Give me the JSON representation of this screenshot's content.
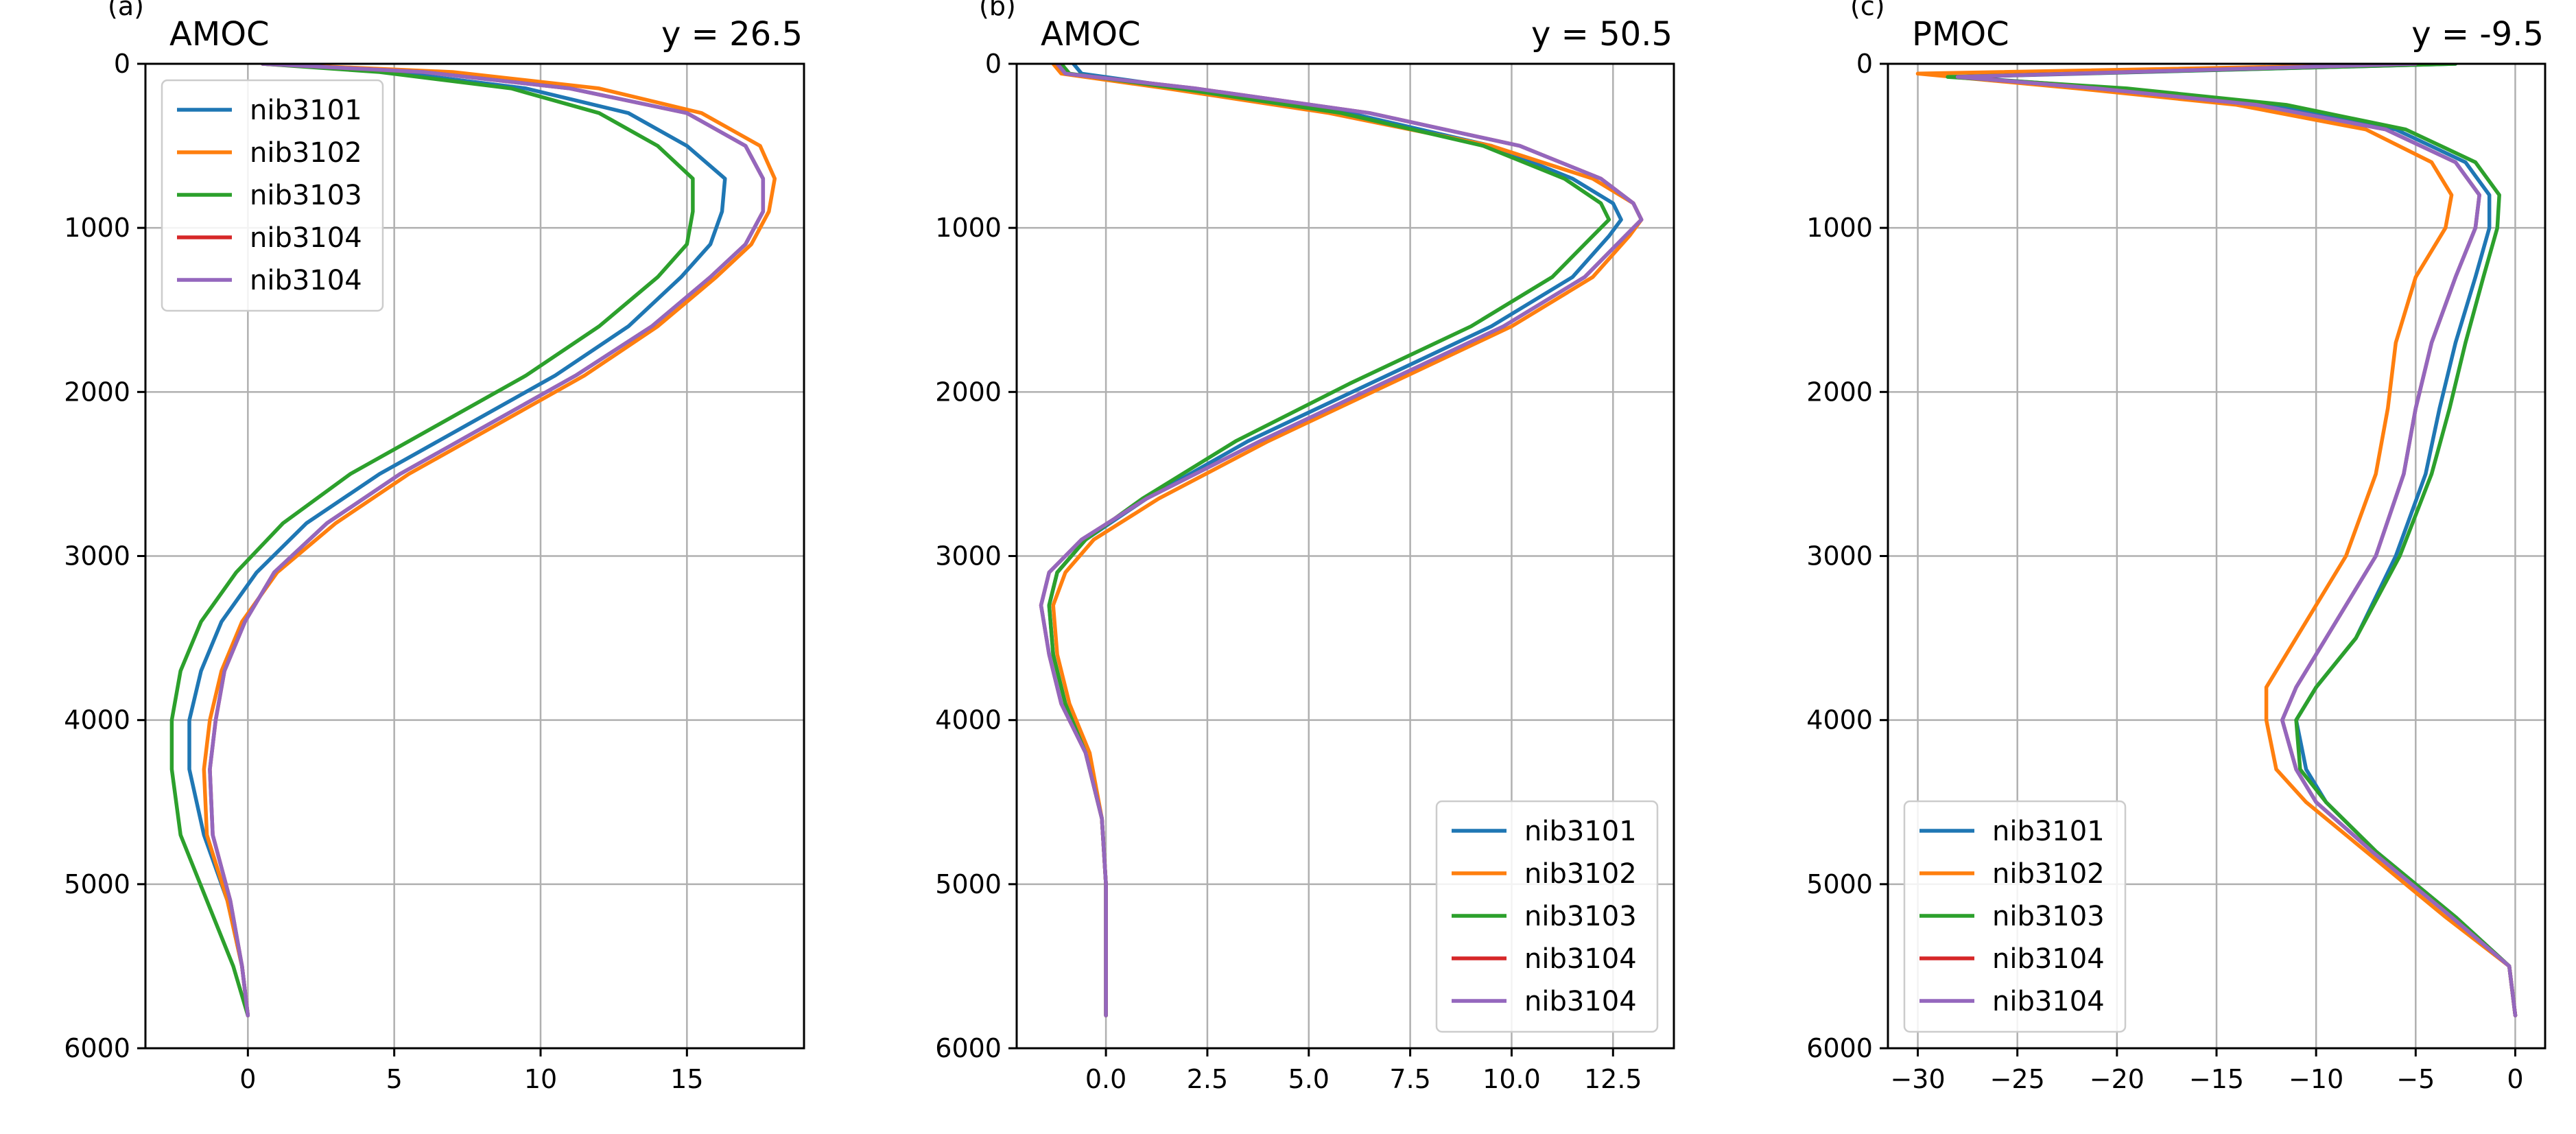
{
  "series_colors": {
    "nib3101": "#1f77b4",
    "nib3102": "#ff7f0e",
    "nib3103": "#2ca02c",
    "nib3104a": "#d62728",
    "nib3104b": "#9467bd"
  },
  "chart_data": [
    {
      "type": "line",
      "panel_tag": "(a)",
      "title_left": "AMOC",
      "title_right": "y = 26.5",
      "xlim": [
        -3.5,
        19
      ],
      "ylim": [
        6000,
        0
      ],
      "y_inverted": true,
      "xticks": [
        0,
        5,
        10,
        15
      ],
      "xtick_labels": [
        "0",
        "5",
        "10",
        "15"
      ],
      "yticks": [
        0,
        1000,
        2000,
        3000,
        4000,
        5000,
        6000
      ],
      "ytick_labels": [
        "0",
        "1000",
        "2000",
        "3000",
        "4000",
        "5000",
        "6000"
      ],
      "grid": true,
      "legend_position": "top-left",
      "series": [
        {
          "name": "nib3101",
          "color": "#1f77b4",
          "x": [
            0.5,
            5,
            9.5,
            13,
            15,
            16.3,
            16.2,
            15.8,
            14.8,
            13,
            10.5,
            7.5,
            4.5,
            2,
            0.3,
            -0.9,
            -1.6,
            -2,
            -2,
            -1.5,
            -0.7,
            -0.2,
            0
          ],
          "y": [
            0,
            50,
            150,
            300,
            500,
            700,
            900,
            1100,
            1300,
            1600,
            1900,
            2200,
            2500,
            2800,
            3100,
            3400,
            3700,
            4000,
            4300,
            4700,
            5100,
            5500,
            5800
          ]
        },
        {
          "name": "nib3102",
          "color": "#ff7f0e",
          "x": [
            0.5,
            7,
            12,
            15.5,
            17.5,
            18,
            17.8,
            17.2,
            16,
            14,
            11.5,
            8.5,
            5.5,
            3,
            1,
            -0.2,
            -0.9,
            -1.3,
            -1.5,
            -1.4,
            -0.7,
            -0.2,
            0
          ],
          "y": [
            0,
            50,
            150,
            300,
            500,
            700,
            900,
            1100,
            1300,
            1600,
            1900,
            2200,
            2500,
            2800,
            3100,
            3400,
            3700,
            4000,
            4300,
            4700,
            5100,
            5500,
            5800
          ]
        },
        {
          "name": "nib3103",
          "color": "#2ca02c",
          "x": [
            0.5,
            4.5,
            9,
            12,
            14,
            15.2,
            15.2,
            15,
            14,
            12,
            9.5,
            6.5,
            3.5,
            1.2,
            -0.4,
            -1.6,
            -2.3,
            -2.6,
            -2.6,
            -2.3,
            -1.4,
            -0.5,
            0
          ],
          "y": [
            0,
            50,
            150,
            300,
            500,
            700,
            900,
            1100,
            1300,
            1600,
            1900,
            2200,
            2500,
            2800,
            3100,
            3400,
            3700,
            4000,
            4300,
            4700,
            5100,
            5500,
            5800
          ]
        },
        {
          "name": "nib3104",
          "color": "#d62728",
          "x": [
            0.5,
            6,
            11,
            15,
            17,
            17.6,
            17.6,
            17,
            15.8,
            13.8,
            11.2,
            8.2,
            5.2,
            2.7,
            0.9,
            -0.1,
            -0.8,
            -1.1,
            -1.3,
            -1.2,
            -0.6,
            -0.2,
            0
          ],
          "y": [
            0,
            50,
            150,
            300,
            500,
            700,
            900,
            1100,
            1300,
            1600,
            1900,
            2200,
            2500,
            2800,
            3100,
            3400,
            3700,
            4000,
            4300,
            4700,
            5100,
            5500,
            5800
          ]
        },
        {
          "name": "nib3104",
          "color": "#9467bd",
          "x": [
            0.5,
            6,
            11,
            15,
            17,
            17.6,
            17.6,
            17,
            15.8,
            13.8,
            11.2,
            8.2,
            5.2,
            2.7,
            0.9,
            -0.1,
            -0.8,
            -1.1,
            -1.3,
            -1.2,
            -0.6,
            -0.2,
            0
          ],
          "y": [
            0,
            50,
            150,
            300,
            500,
            700,
            900,
            1100,
            1300,
            1600,
            1900,
            2200,
            2500,
            2800,
            3100,
            3400,
            3700,
            4000,
            4300,
            4700,
            5100,
            5500,
            5800
          ]
        }
      ]
    },
    {
      "type": "line",
      "panel_tag": "(b)",
      "title_left": "AMOC",
      "title_right": "y = 50.5",
      "xlim": [
        -2.2,
        14
      ],
      "ylim": [
        6000,
        0
      ],
      "y_inverted": true,
      "xticks": [
        0,
        2.5,
        5,
        7.5,
        10,
        12.5
      ],
      "xtick_labels": [
        "0.0",
        "2.5",
        "5.0",
        "7.5",
        "10.0",
        "12.5"
      ],
      "yticks": [
        0,
        1000,
        2000,
        3000,
        4000,
        5000,
        6000
      ],
      "ytick_labels": [
        "0",
        "1000",
        "2000",
        "3000",
        "4000",
        "5000",
        "6000"
      ],
      "grid": true,
      "legend_position": "bottom-right",
      "series": [
        {
          "name": "nib3101",
          "color": "#1f77b4",
          "x": [
            -0.8,
            -0.6,
            2,
            6,
            9.5,
            11.5,
            12.5,
            12.7,
            12.4,
            11.5,
            9.5,
            6.5,
            3.5,
            1,
            -0.5,
            -1.2,
            -1.4,
            -1.3,
            -1,
            -0.5,
            -0.1,
            0,
            0,
            0
          ],
          "y": [
            0,
            60,
            150,
            300,
            500,
            700,
            850,
            950,
            1050,
            1300,
            1600,
            1950,
            2300,
            2650,
            2900,
            3100,
            3300,
            3600,
            3900,
            4200,
            4600,
            5000,
            5500,
            5800
          ]
        },
        {
          "name": "nib3102",
          "color": "#ff7f0e",
          "x": [
            -1.3,
            -1.1,
            1.5,
            5.5,
            9.5,
            12,
            13,
            13.2,
            12.9,
            12,
            10,
            7,
            4,
            1.3,
            -0.3,
            -1,
            -1.3,
            -1.2,
            -0.9,
            -0.4,
            -0.1,
            0,
            0,
            0
          ],
          "y": [
            0,
            60,
            150,
            300,
            500,
            700,
            850,
            950,
            1050,
            1300,
            1600,
            1950,
            2300,
            2650,
            2900,
            3100,
            3300,
            3600,
            3900,
            4200,
            4600,
            5000,
            5500,
            5800
          ]
        },
        {
          "name": "nib3103",
          "color": "#2ca02c",
          "x": [
            -1.1,
            -0.9,
            1.8,
            5.8,
            9.3,
            11.3,
            12.2,
            12.4,
            12,
            11,
            9,
            6,
            3.2,
            0.9,
            -0.5,
            -1.2,
            -1.4,
            -1.3,
            -1,
            -0.5,
            -0.1,
            0,
            0,
            0
          ],
          "y": [
            0,
            60,
            150,
            300,
            500,
            700,
            850,
            950,
            1050,
            1300,
            1600,
            1950,
            2300,
            2650,
            2900,
            3100,
            3300,
            3600,
            3900,
            4200,
            4600,
            5000,
            5500,
            5800
          ]
        },
        {
          "name": "nib3104",
          "color": "#d62728",
          "x": [
            -1.2,
            -1,
            2.2,
            6.5,
            10.2,
            12.2,
            13,
            13.2,
            12.8,
            11.8,
            9.8,
            6.8,
            3.8,
            1,
            -0.6,
            -1.4,
            -1.6,
            -1.4,
            -1.1,
            -0.5,
            -0.1,
            0,
            0,
            0
          ],
          "y": [
            0,
            60,
            150,
            300,
            500,
            700,
            850,
            950,
            1050,
            1300,
            1600,
            1950,
            2300,
            2650,
            2900,
            3100,
            3300,
            3600,
            3900,
            4200,
            4600,
            5000,
            5500,
            5800
          ]
        },
        {
          "name": "nib3104",
          "color": "#9467bd",
          "x": [
            -1.2,
            -1,
            2.2,
            6.5,
            10.2,
            12.2,
            13,
            13.2,
            12.8,
            11.8,
            9.8,
            6.8,
            3.8,
            1,
            -0.6,
            -1.4,
            -1.6,
            -1.4,
            -1.1,
            -0.5,
            -0.1,
            0,
            0,
            0
          ],
          "y": [
            0,
            60,
            150,
            300,
            500,
            700,
            850,
            950,
            1050,
            1300,
            1600,
            1950,
            2300,
            2650,
            2900,
            3100,
            3300,
            3600,
            3900,
            4200,
            4600,
            5000,
            5500,
            5800
          ]
        }
      ]
    },
    {
      "type": "line",
      "panel_tag": "(c)",
      "title_left": "PMOC",
      "title_right": "y = -9.5",
      "xlim": [
        -31.5,
        1.5
      ],
      "ylim": [
        6000,
        0
      ],
      "y_inverted": true,
      "xticks": [
        -30,
        -25,
        -20,
        -15,
        -10,
        -5,
        0
      ],
      "xtick_labels": [
        "−30",
        "−25",
        "−20",
        "−15",
        "−10",
        "−5",
        "0"
      ],
      "yticks": [
        0,
        1000,
        2000,
        3000,
        4000,
        5000,
        6000
      ],
      "ytick_labels": [
        "0",
        "1000",
        "2000",
        "3000",
        "4000",
        "5000",
        "6000"
      ],
      "grid": true,
      "legend_position": "bottom-left",
      "series": [
        {
          "name": "nib3101",
          "color": "#1f77b4",
          "x": [
            -3,
            -28,
            -20,
            -12,
            -6,
            -2.5,
            -1.3,
            -1.3,
            -2,
            -3,
            -3.8,
            -4.5,
            -6,
            -8,
            -10,
            -11,
            -10.5,
            -9.5,
            -7,
            -3,
            -0.3,
            0
          ],
          "y": [
            0,
            80,
            150,
            250,
            400,
            600,
            800,
            1000,
            1300,
            1700,
            2100,
            2500,
            3000,
            3500,
            3800,
            4000,
            4300,
            4500,
            4800,
            5200,
            5500,
            5800
          ]
        },
        {
          "name": "nib3102",
          "color": "#ff7f0e",
          "x": [
            -4,
            -30,
            -22,
            -14,
            -7.5,
            -4.2,
            -3.2,
            -3.5,
            -5,
            -6,
            -6.4,
            -7,
            -8.5,
            -11,
            -12.5,
            -12.5,
            -12,
            -10.5,
            -7.5,
            -3.5,
            -0.3,
            0
          ],
          "y": [
            0,
            60,
            150,
            250,
            400,
            600,
            800,
            1000,
            1300,
            1700,
            2100,
            2500,
            3000,
            3500,
            3800,
            4000,
            4300,
            4500,
            4800,
            5200,
            5500,
            5800
          ]
        },
        {
          "name": "nib3103",
          "color": "#2ca02c",
          "x": [
            -3,
            -28.5,
            -19.5,
            -11.5,
            -5.5,
            -2,
            -0.8,
            -0.9,
            -1.6,
            -2.5,
            -3.3,
            -4.2,
            -5.8,
            -8,
            -10,
            -11,
            -10.8,
            -9.5,
            -7,
            -3,
            -0.3,
            0
          ],
          "y": [
            0,
            80,
            150,
            250,
            400,
            600,
            800,
            1000,
            1300,
            1700,
            2100,
            2500,
            3000,
            3500,
            3800,
            4000,
            4300,
            4500,
            4800,
            5200,
            5500,
            5800
          ]
        },
        {
          "name": "nib3104",
          "color": "#d62728",
          "x": [
            -5,
            -28,
            -21,
            -13,
            -6.5,
            -3,
            -1.8,
            -2,
            -3,
            -4.2,
            -5,
            -5.6,
            -7,
            -9.5,
            -11,
            -11.7,
            -11,
            -10,
            -7.2,
            -3.2,
            -0.3,
            0
          ],
          "y": [
            0,
            80,
            150,
            250,
            400,
            600,
            800,
            1000,
            1300,
            1700,
            2100,
            2500,
            3000,
            3500,
            3800,
            4000,
            4300,
            4500,
            4800,
            5200,
            5500,
            5800
          ]
        },
        {
          "name": "nib3104",
          "color": "#9467bd",
          "x": [
            -5,
            -28,
            -21,
            -13,
            -6.5,
            -3,
            -1.8,
            -2,
            -3,
            -4.2,
            -5,
            -5.6,
            -7,
            -9.5,
            -11,
            -11.7,
            -11,
            -10,
            -7.2,
            -3.2,
            -0.3,
            0
          ],
          "y": [
            0,
            80,
            150,
            250,
            400,
            600,
            800,
            1000,
            1300,
            1700,
            2100,
            2500,
            3000,
            3500,
            3800,
            4000,
            4300,
            4500,
            4800,
            5200,
            5500,
            5800
          ]
        }
      ]
    }
  ]
}
